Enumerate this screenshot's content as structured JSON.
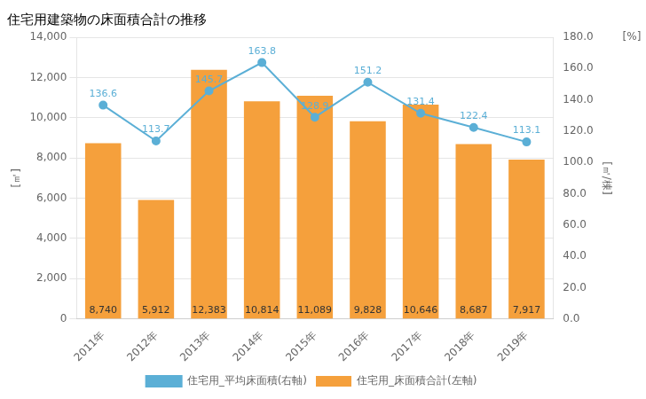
{
  "chart_data": {
    "type": "bar",
    "title": "住宅用建築物の床面積合計の推移",
    "categories": [
      "2011年",
      "2012年",
      "2013年",
      "2014年",
      "2015年",
      "2016年",
      "2017年",
      "2018年",
      "2019年"
    ],
    "series": [
      {
        "name": "住宅用_床面積合計(左軸)",
        "type": "bar",
        "color": "#F5A03C",
        "values": [
          8740,
          5912,
          12383,
          10814,
          11089,
          9828,
          10646,
          8687,
          7917
        ],
        "value_labels": [
          "8,740",
          "5,912",
          "12,383",
          "10,814",
          "11,089",
          "9,828",
          "10,646",
          "8,687",
          "7,917"
        ]
      },
      {
        "name": "住宅用_平均床面積(右軸)",
        "type": "line",
        "axis": "y2",
        "color": "#5BAFD6",
        "marker": "circle",
        "values": [
          136.6,
          113.7,
          145.7,
          163.8,
          128.9,
          151.2,
          131.4,
          122.4,
          113.1
        ]
      }
    ],
    "ylabel": "[㎡]",
    "y2label": "[㎡/棟]",
    "annotations": [
      "[%]"
    ],
    "ylim": [
      0,
      14000
    ],
    "yticks": [
      0,
      {
        "value": 2000,
        "label": "2,000"
      },
      {
        "value": 4000,
        "label": "4,000"
      },
      {
        "value": 6000,
        "label": "6,000"
      },
      {
        "value": 8000,
        "label": "8,000"
      },
      {
        "value": 10000,
        "label": "10,000"
      },
      {
        "value": 12000,
        "label": "12,000"
      },
      {
        "value": 14000,
        "label": "14,000"
      }
    ],
    "y2lim": [
      0.0,
      180.0
    ],
    "y2ticks": [
      {
        "value": 0,
        "label": "0.0"
      },
      {
        "value": 20,
        "label": "20.0"
      },
      {
        "value": 40,
        "label": "40.0"
      },
      {
        "value": 60,
        "label": "60.0"
      },
      {
        "value": 80,
        "label": "80.0"
      },
      {
        "value": 100,
        "label": "100.0"
      },
      {
        "value": 120,
        "label": "120.0"
      },
      {
        "value": 140,
        "label": "140.0"
      },
      {
        "value": 160,
        "label": "160.0"
      },
      {
        "value": 180,
        "label": "180.0"
      }
    ],
    "grid": true,
    "legend": "bottom",
    "data_labels": true
  }
}
